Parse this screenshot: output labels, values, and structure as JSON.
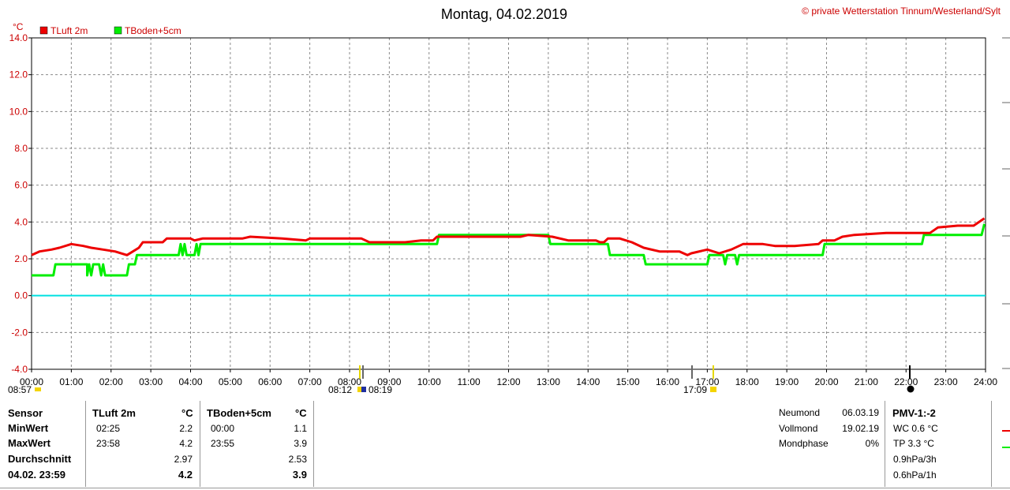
{
  "header": {
    "title": "Montag, 04.02.2019",
    "copyright": "© private Wetterstation Tinnum/Westerland/Sylt"
  },
  "chart_data": {
    "type": "line",
    "ylabel": "°C",
    "ylim": [
      -4.0,
      14.0
    ],
    "yticks": [
      "14.0",
      "12.0",
      "10.0",
      "8.0",
      "6.0",
      "4.0",
      "2.0",
      "0.0",
      "-2.0",
      "-4.0"
    ],
    "xlim": [
      0,
      24
    ],
    "xticks": [
      "00:00",
      "01:00",
      "02:00",
      "03:00",
      "04:00",
      "05:00",
      "06:00",
      "07:00",
      "08:00",
      "09:00",
      "10:00",
      "11:00",
      "12:00",
      "13:00",
      "14:00",
      "15:00",
      "16:00",
      "17:00",
      "18:00",
      "19:00",
      "20:00",
      "21:00",
      "22:00",
      "23:00",
      "24:00"
    ],
    "grid": true,
    "legend": "top-left",
    "reference_line": {
      "y": 0.0,
      "color": "#00e0e0"
    },
    "series": [
      {
        "name": "TLuft 2m",
        "color": "#ee0000",
        "points": [
          [
            0,
            2.2
          ],
          [
            0.2,
            2.4
          ],
          [
            0.5,
            2.5
          ],
          [
            0.7,
            2.6
          ],
          [
            1.0,
            2.8
          ],
          [
            1.3,
            2.7
          ],
          [
            1.5,
            2.6
          ],
          [
            1.8,
            2.5
          ],
          [
            2.1,
            2.4
          ],
          [
            2.4,
            2.2
          ],
          [
            2.7,
            2.6
          ],
          [
            2.8,
            2.9
          ],
          [
            3.3,
            2.9
          ],
          [
            3.4,
            3.1
          ],
          [
            4.0,
            3.1
          ],
          [
            4.1,
            3.0
          ],
          [
            4.3,
            3.1
          ],
          [
            5.3,
            3.1
          ],
          [
            5.5,
            3.2
          ],
          [
            6.3,
            3.1
          ],
          [
            6.9,
            3.0
          ],
          [
            7.0,
            3.1
          ],
          [
            8.3,
            3.1
          ],
          [
            8.5,
            2.9
          ],
          [
            9.4,
            2.9
          ],
          [
            9.8,
            3.0
          ],
          [
            10.1,
            3.0
          ],
          [
            10.2,
            3.2
          ],
          [
            12.3,
            3.2
          ],
          [
            12.5,
            3.3
          ],
          [
            13.1,
            3.2
          ],
          [
            13.5,
            3.0
          ],
          [
            14.2,
            3.0
          ],
          [
            14.3,
            2.9
          ],
          [
            14.4,
            2.9
          ],
          [
            14.5,
            3.1
          ],
          [
            14.8,
            3.1
          ],
          [
            15.1,
            2.9
          ],
          [
            15.4,
            2.6
          ],
          [
            15.8,
            2.4
          ],
          [
            16.3,
            2.4
          ],
          [
            16.5,
            2.2
          ],
          [
            16.6,
            2.3
          ],
          [
            17.0,
            2.5
          ],
          [
            17.3,
            2.3
          ],
          [
            17.6,
            2.5
          ],
          [
            17.9,
            2.8
          ],
          [
            18.4,
            2.8
          ],
          [
            18.7,
            2.7
          ],
          [
            19.2,
            2.7
          ],
          [
            19.8,
            2.8
          ],
          [
            19.9,
            3.0
          ],
          [
            20.2,
            3.0
          ],
          [
            20.4,
            3.2
          ],
          [
            20.7,
            3.3
          ],
          [
            21.5,
            3.4
          ],
          [
            22.0,
            3.4
          ],
          [
            22.6,
            3.4
          ],
          [
            22.8,
            3.7
          ],
          [
            23.3,
            3.8
          ],
          [
            23.7,
            3.8
          ],
          [
            23.97,
            4.2
          ]
        ]
      },
      {
        "name": "TBoden+5cm",
        "color": "#00ee00",
        "points": [
          [
            0,
            1.1
          ],
          [
            0.55,
            1.1
          ],
          [
            0.6,
            1.7
          ],
          [
            1.4,
            1.7
          ],
          [
            1.4,
            1.1
          ],
          [
            1.45,
            1.7
          ],
          [
            1.5,
            1.1
          ],
          [
            1.55,
            1.7
          ],
          [
            1.7,
            1.7
          ],
          [
            1.75,
            1.1
          ],
          [
            1.8,
            1.7
          ],
          [
            1.85,
            1.1
          ],
          [
            2.4,
            1.1
          ],
          [
            2.45,
            1.7
          ],
          [
            2.6,
            1.7
          ],
          [
            2.65,
            2.2
          ],
          [
            3.7,
            2.2
          ],
          [
            3.75,
            2.8
          ],
          [
            3.8,
            2.2
          ],
          [
            3.85,
            2.8
          ],
          [
            3.9,
            2.2
          ],
          [
            4.1,
            2.2
          ],
          [
            4.15,
            2.8
          ],
          [
            4.2,
            2.2
          ],
          [
            4.25,
            2.8
          ],
          [
            10.2,
            2.8
          ],
          [
            10.25,
            3.3
          ],
          [
            13.0,
            3.3
          ],
          [
            13.05,
            2.8
          ],
          [
            14.5,
            2.8
          ],
          [
            14.55,
            2.2
          ],
          [
            15.4,
            2.2
          ],
          [
            15.45,
            1.7
          ],
          [
            17.0,
            1.7
          ],
          [
            17.05,
            2.2
          ],
          [
            17.4,
            2.2
          ],
          [
            17.45,
            1.7
          ],
          [
            17.5,
            2.2
          ],
          [
            17.7,
            2.2
          ],
          [
            17.75,
            1.7
          ],
          [
            17.8,
            2.2
          ],
          [
            19.9,
            2.2
          ],
          [
            19.95,
            2.8
          ],
          [
            22.4,
            2.8
          ],
          [
            22.45,
            3.3
          ],
          [
            23.9,
            3.3
          ],
          [
            23.97,
            3.9
          ]
        ]
      }
    ]
  },
  "time_markers": {
    "sunrise_left": "08:57",
    "sunrise": "08:12",
    "sun_mid": "08:19",
    "sunset": "17:09"
  },
  "stats": {
    "headers": {
      "sensor": "Sensor",
      "col1": "TLuft 2m",
      "unit1": "°C",
      "col2": "TBoden+5cm",
      "unit2": "°C"
    },
    "rows": [
      {
        "label": "MinWert",
        "t1": "02:25",
        "v1": "2.2",
        "t2": "00:00",
        "v2": "1.1"
      },
      {
        "label": "MaxWert",
        "t1": "23:58",
        "v1": "4.2",
        "t2": "23:55",
        "v2": "3.9"
      },
      {
        "label": "Durchschnitt",
        "t1": "",
        "v1": "2.97",
        "t2": "",
        "v2": "2.53"
      },
      {
        "label": "04.02. 23:59",
        "t1": "",
        "v1": "4.2",
        "t2": "",
        "v2": "3.9"
      }
    ]
  },
  "moon": {
    "rows": [
      {
        "label": "Neumond",
        "value": "06.03.19"
      },
      {
        "label": "Vollmond",
        "value": "19.02.19"
      },
      {
        "label": "Mondphase",
        "value": "0%"
      }
    ]
  },
  "pmv": {
    "title": "PMV-1:-2",
    "lines": [
      "WC 0.6 °C",
      "TP 3.3 °C",
      "0.9hPa/3h",
      "0.6hPa/1h"
    ]
  }
}
